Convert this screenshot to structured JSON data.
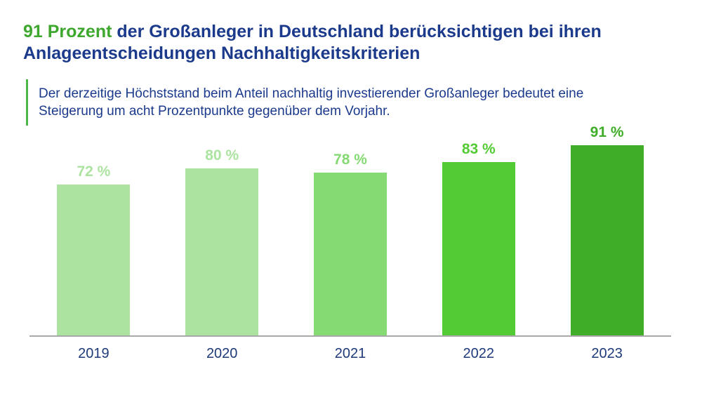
{
  "header": {
    "title_highlight": "91 Prozent",
    "title_rest_line1": "der Großanleger in Deutschland berücksichtigen bei ihren",
    "title_line2": "Anlageentscheidungen Nachhaltigkeitskriterien",
    "subtitle_line1": "Der derzeitige Höchststand beim Anteil nachhaltig investierender Großanleger bedeutet eine",
    "subtitle_line2": "Steigerung um acht Prozentpunkte gegenüber dem Vorjahr."
  },
  "colors": {
    "title_blue": "#1b3a8c",
    "title_green": "#3ea72e",
    "subtitle_blue": "#1b3a8c",
    "subtitle_border_green": "#4cb648",
    "axis_line_gray": "#a8a8a8",
    "year_label_blue": "#1e3a7a"
  },
  "chart_data": {
    "type": "bar",
    "title": "91 Prozent der Großanleger in Deutschland berücksichtigen bei ihren Anlageentscheidungen Nachhaltigkeitskriterien",
    "subtitle": "Der derzeitige Höchststand beim Anteil nachhaltig investierender Großanleger bedeutet eine Steigerung um acht Prozentpunkte gegenüber dem Vorjahr.",
    "categories": [
      "2019",
      "2020",
      "2021",
      "2022",
      "2023"
    ],
    "values": [
      72,
      80,
      78,
      83,
      91
    ],
    "value_labels": [
      "72 %",
      "80 %",
      "78 %",
      "83 %",
      "91 %"
    ],
    "bar_colors": [
      "#ace3a0",
      "#ace3a0",
      "#85da74",
      "#52cb34",
      "#3fad28"
    ],
    "label_colors": [
      "#ace3a0",
      "#ace3a0",
      "#85da74",
      "#52cb34",
      "#3fad28"
    ],
    "unit": "%",
    "xlabel": "",
    "ylabel": "",
    "ylim": [
      0,
      100
    ],
    "grid": false,
    "legend": false
  }
}
